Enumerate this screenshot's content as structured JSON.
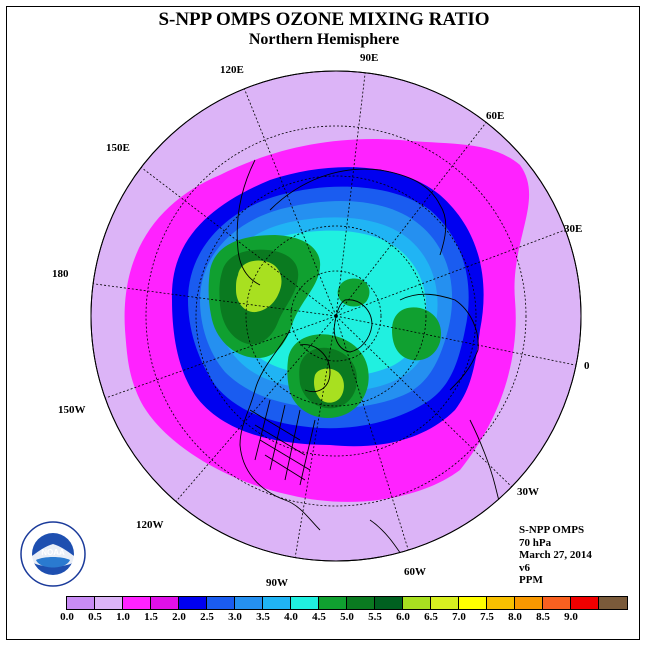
{
  "title": "S-NPP OMPS OZONE MIXING RATIO",
  "subtitle": "Northern Hemisphere",
  "longitude_labels": [
    "90E",
    "60E",
    "30E",
    "0",
    "30W",
    "60W",
    "90W",
    "120W",
    "150W",
    "180",
    "150E",
    "120E"
  ],
  "info": {
    "instrument": "S-NPP OMPS",
    "level": "70 hPa",
    "date": "March 27, 2014",
    "version": "v6",
    "units": "PPM"
  },
  "colorbar": {
    "ticks": [
      "0.0",
      "0.5",
      "1.0",
      "1.5",
      "2.0",
      "2.5",
      "3.0",
      "3.5",
      "4.0",
      "4.5",
      "5.0",
      "5.5",
      "6.0",
      "6.5",
      "7.0",
      "7.5",
      "8.0",
      "8.5",
      "9.0"
    ],
    "colors": [
      "#c98cf5",
      "#dcb4f7",
      "#ff22ff",
      "#e010e8",
      "#0000f0",
      "#1a5cf0",
      "#2590f0",
      "#20b4f4",
      "#20f0e0",
      "#10a030",
      "#0a7a20",
      "#006020",
      "#a8e020",
      "#d8f020",
      "#ffff00",
      "#f8c000",
      "#f89800",
      "#f86020",
      "#f00000",
      "#7a5a3a"
    ]
  },
  "logo": {
    "name": "NOAA"
  }
}
